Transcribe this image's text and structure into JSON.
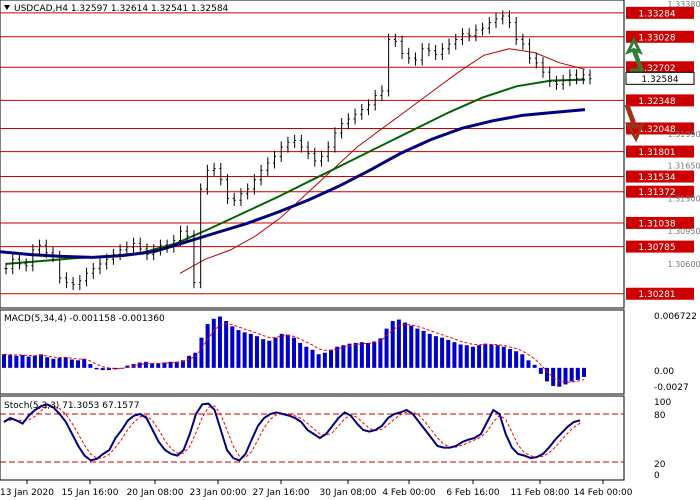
{
  "header": {
    "symbol_line": "USDCAD,H4  1.32597  1.32614  1.32541  1.32584"
  },
  "macd": {
    "label": "MACD(5,34,4) -0.001158 -0.001360",
    "ticks": [
      "0.006722",
      "0.00",
      "-0.0027"
    ]
  },
  "stoch": {
    "label": "Stoch(5,3,3) 71.3053 67.1577",
    "ticks": [
      "100",
      "80",
      "20",
      "0"
    ]
  },
  "colors": {
    "red_level": "#cc0000",
    "ma_fast": "#b80000",
    "ma_mid": "#006400",
    "ma_slow": "#000080",
    "macd_bar": "#0000cc",
    "signal": "#ff0000",
    "arrow_up": "#2e7d32",
    "arrow_down": "#a0301a",
    "price_box": "#ffffff"
  },
  "chart_data": {
    "type": "candlestick",
    "title": "USDCAD,H4",
    "ohlc_header": {
      "open": 1.32597,
      "high": 1.32614,
      "low": 1.32541,
      "close": 1.32584
    },
    "current_price": 1.32584,
    "ylim": [
      1.3015,
      1.334
    ],
    "y_ticks": [
      "1.33380",
      "1.30600",
      "1.30950",
      "1.31300",
      "1.31650",
      "1.31990"
    ],
    "levels": [
      {
        "value": 1.33284,
        "label": "1.33284"
      },
      {
        "value": 1.33028,
        "label": "1.33028"
      },
      {
        "value": 1.32702,
        "label": "1.32702"
      },
      {
        "value": 1.32348,
        "label": "1.32348"
      },
      {
        "value": 1.32048,
        "label": "1.32048"
      },
      {
        "value": 1.31801,
        "label": "1.31801"
      },
      {
        "value": 1.31534,
        "label": "1.31534"
      },
      {
        "value": 1.31372,
        "label": "1.31372"
      },
      {
        "value": 1.31038,
        "label": "1.31038"
      },
      {
        "value": 1.30785,
        "label": "1.30785"
      },
      {
        "value": 1.30281,
        "label": "1.30281"
      }
    ],
    "x_labels": [
      "13 Jan 2020",
      "15 Jan 16:00",
      "20 Jan 08:00",
      "23 Jan 00:00",
      "27 Jan 16:00",
      "30 Jan 08:00",
      "4 Feb 00:00",
      "6 Feb 16:00",
      "11 Feb 08:00",
      "14 Feb 00:00"
    ],
    "closes": [
      1.3055,
      1.3065,
      1.306,
      1.3058,
      1.3075,
      1.308,
      1.3072,
      1.3068,
      1.3045,
      1.304,
      1.3038,
      1.3042,
      1.305,
      1.3055,
      1.306,
      1.3065,
      1.307,
      1.3075,
      1.3078,
      1.3082,
      1.3076,
      1.307,
      1.3075,
      1.308,
      1.3078,
      1.3085,
      1.3095,
      1.309,
      1.304,
      1.314,
      1.316,
      1.3162,
      1.315,
      1.313,
      1.3128,
      1.3135,
      1.314,
      1.315,
      1.316,
      1.3168,
      1.3175,
      1.3185,
      1.319,
      1.3192,
      1.3185,
      1.3178,
      1.317,
      1.3175,
      1.3185,
      1.32,
      1.321,
      1.3215,
      1.322,
      1.3225,
      1.323,
      1.324,
      1.3245,
      1.33,
      1.3298,
      1.3285,
      1.328,
      1.3278,
      1.329,
      1.3288,
      1.3284,
      1.329,
      1.3295,
      1.33,
      1.3306,
      1.3304,
      1.331,
      1.3312,
      1.3318,
      1.3322,
      1.3325,
      1.3318,
      1.33,
      1.3295,
      1.328,
      1.3275,
      1.3265,
      1.3255,
      1.3252,
      1.3256,
      1.3262,
      1.3258,
      1.3262,
      1.3258
    ],
    "ma_fast": [
      1.305,
      1.3065,
      1.3075,
      1.309,
      1.311,
      1.3135,
      1.316,
      1.3185,
      1.3205,
      1.3225,
      1.3245,
      1.3265,
      1.3283,
      1.329,
      1.3286,
      1.3275,
      1.3268
    ],
    "ma_mid": [
      1.306,
      1.3063,
      1.3066,
      1.3068,
      1.3072,
      1.3082,
      1.3098,
      1.3115,
      1.3132,
      1.315,
      1.3168,
      1.3186,
      1.3204,
      1.3222,
      1.3238,
      1.325,
      1.3256,
      1.3257
    ],
    "ma_slow": [
      1.3073,
      1.307,
      1.3068,
      1.3067,
      1.3069,
      1.3073,
      1.3083,
      1.3093,
      1.3103,
      1.3115,
      1.3128,
      1.3143,
      1.316,
      1.3178,
      1.3193,
      1.3205,
      1.3213,
      1.3219,
      1.3222,
      1.3225
    ],
    "macd_values": [
      0.0018,
      0.0017,
      0.0016,
      0.0017,
      0.0015,
      0.0016,
      0.0018,
      0.0014,
      0.0012,
      0.0013,
      0.0014,
      0.0011,
      0.001,
      0.0012,
      0.0005,
      -0.0002,
      -0.0003,
      -0.0003,
      -0.0002,
      -0.0001,
      0.0003,
      0.0005,
      0.0007,
      0.0008,
      0.0006,
      0.0006,
      0.0007,
      0.0008,
      0.0008,
      0.001,
      0.0016,
      0.002,
      0.004,
      0.0058,
      0.0065,
      0.0068,
      0.0062,
      0.0055,
      0.005,
      0.0047,
      0.0045,
      0.0042,
      0.0038,
      0.0036,
      0.004,
      0.0045,
      0.0044,
      0.004,
      0.0033,
      0.0028,
      0.0024,
      0.0018,
      0.002,
      0.0024,
      0.0028,
      0.003,
      0.0032,
      0.0033,
      0.0034,
      0.0033,
      0.0035,
      0.0039,
      0.0052,
      0.0062,
      0.0064,
      0.006,
      0.0056,
      0.0052,
      0.0049,
      0.0045,
      0.0042,
      0.004,
      0.0037,
      0.0034,
      0.0031,
      0.003,
      0.0028,
      0.003,
      0.0032,
      0.0031,
      0.003,
      0.0028,
      0.0025,
      0.0022,
      0.0018,
      0.001,
      0.0004,
      -0.0008,
      -0.0018,
      -0.0024,
      -0.0025,
      -0.0022,
      -0.0018,
      -0.0016,
      -0.0012
    ],
    "macd_ylim": [
      -0.0032,
      0.0074
    ],
    "stoch_k": [
      70,
      75,
      72,
      68,
      78,
      85,
      90,
      92,
      88,
      80,
      70,
      55,
      40,
      28,
      22,
      24,
      30,
      35,
      50,
      60,
      72,
      78,
      80,
      75,
      60,
      45,
      35,
      30,
      28,
      35,
      55,
      80,
      92,
      93,
      85,
      60,
      35,
      25,
      22,
      30,
      48,
      65,
      75,
      80,
      82,
      80,
      78,
      75,
      70,
      60,
      55,
      50,
      55,
      65,
      75,
      82,
      78,
      68,
      60,
      58,
      60,
      65,
      75,
      80,
      82,
      85,
      80,
      70,
      60,
      50,
      40,
      38,
      38,
      40,
      45,
      48,
      50,
      55,
      70,
      85,
      80,
      55,
      38,
      30,
      28,
      25,
      26,
      30,
      38,
      48,
      56,
      64,
      70,
      72
    ]
  }
}
